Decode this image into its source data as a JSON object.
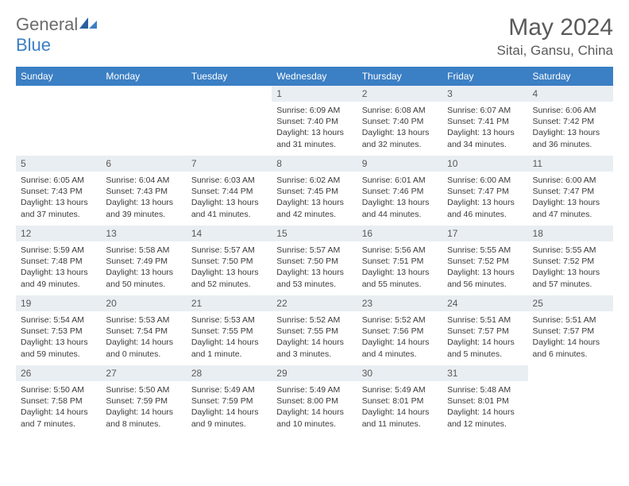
{
  "brand": {
    "text1": "General",
    "text2": "Blue"
  },
  "title": "May 2024",
  "location": "Sitai, Gansu, China",
  "colors": {
    "header_bg": "#3b7fc4",
    "header_text": "#ffffff",
    "daynum_bg": "#e9eef2",
    "body_text": "#3a3a3a",
    "page_bg": "#ffffff"
  },
  "weekdays": [
    "Sunday",
    "Monday",
    "Tuesday",
    "Wednesday",
    "Thursday",
    "Friday",
    "Saturday"
  ],
  "weeks": [
    [
      null,
      null,
      null,
      {
        "n": "1",
        "sr": "Sunrise: 6:09 AM",
        "ss": "Sunset: 7:40 PM",
        "dl": "Daylight: 13 hours and 31 minutes."
      },
      {
        "n": "2",
        "sr": "Sunrise: 6:08 AM",
        "ss": "Sunset: 7:40 PM",
        "dl": "Daylight: 13 hours and 32 minutes."
      },
      {
        "n": "3",
        "sr": "Sunrise: 6:07 AM",
        "ss": "Sunset: 7:41 PM",
        "dl": "Daylight: 13 hours and 34 minutes."
      },
      {
        "n": "4",
        "sr": "Sunrise: 6:06 AM",
        "ss": "Sunset: 7:42 PM",
        "dl": "Daylight: 13 hours and 36 minutes."
      }
    ],
    [
      {
        "n": "5",
        "sr": "Sunrise: 6:05 AM",
        "ss": "Sunset: 7:43 PM",
        "dl": "Daylight: 13 hours and 37 minutes."
      },
      {
        "n": "6",
        "sr": "Sunrise: 6:04 AM",
        "ss": "Sunset: 7:43 PM",
        "dl": "Daylight: 13 hours and 39 minutes."
      },
      {
        "n": "7",
        "sr": "Sunrise: 6:03 AM",
        "ss": "Sunset: 7:44 PM",
        "dl": "Daylight: 13 hours and 41 minutes."
      },
      {
        "n": "8",
        "sr": "Sunrise: 6:02 AM",
        "ss": "Sunset: 7:45 PM",
        "dl": "Daylight: 13 hours and 42 minutes."
      },
      {
        "n": "9",
        "sr": "Sunrise: 6:01 AM",
        "ss": "Sunset: 7:46 PM",
        "dl": "Daylight: 13 hours and 44 minutes."
      },
      {
        "n": "10",
        "sr": "Sunrise: 6:00 AM",
        "ss": "Sunset: 7:47 PM",
        "dl": "Daylight: 13 hours and 46 minutes."
      },
      {
        "n": "11",
        "sr": "Sunrise: 6:00 AM",
        "ss": "Sunset: 7:47 PM",
        "dl": "Daylight: 13 hours and 47 minutes."
      }
    ],
    [
      {
        "n": "12",
        "sr": "Sunrise: 5:59 AM",
        "ss": "Sunset: 7:48 PM",
        "dl": "Daylight: 13 hours and 49 minutes."
      },
      {
        "n": "13",
        "sr": "Sunrise: 5:58 AM",
        "ss": "Sunset: 7:49 PM",
        "dl": "Daylight: 13 hours and 50 minutes."
      },
      {
        "n": "14",
        "sr": "Sunrise: 5:57 AM",
        "ss": "Sunset: 7:50 PM",
        "dl": "Daylight: 13 hours and 52 minutes."
      },
      {
        "n": "15",
        "sr": "Sunrise: 5:57 AM",
        "ss": "Sunset: 7:50 PM",
        "dl": "Daylight: 13 hours and 53 minutes."
      },
      {
        "n": "16",
        "sr": "Sunrise: 5:56 AM",
        "ss": "Sunset: 7:51 PM",
        "dl": "Daylight: 13 hours and 55 minutes."
      },
      {
        "n": "17",
        "sr": "Sunrise: 5:55 AM",
        "ss": "Sunset: 7:52 PM",
        "dl": "Daylight: 13 hours and 56 minutes."
      },
      {
        "n": "18",
        "sr": "Sunrise: 5:55 AM",
        "ss": "Sunset: 7:52 PM",
        "dl": "Daylight: 13 hours and 57 minutes."
      }
    ],
    [
      {
        "n": "19",
        "sr": "Sunrise: 5:54 AM",
        "ss": "Sunset: 7:53 PM",
        "dl": "Daylight: 13 hours and 59 minutes."
      },
      {
        "n": "20",
        "sr": "Sunrise: 5:53 AM",
        "ss": "Sunset: 7:54 PM",
        "dl": "Daylight: 14 hours and 0 minutes."
      },
      {
        "n": "21",
        "sr": "Sunrise: 5:53 AM",
        "ss": "Sunset: 7:55 PM",
        "dl": "Daylight: 14 hours and 1 minute."
      },
      {
        "n": "22",
        "sr": "Sunrise: 5:52 AM",
        "ss": "Sunset: 7:55 PM",
        "dl": "Daylight: 14 hours and 3 minutes."
      },
      {
        "n": "23",
        "sr": "Sunrise: 5:52 AM",
        "ss": "Sunset: 7:56 PM",
        "dl": "Daylight: 14 hours and 4 minutes."
      },
      {
        "n": "24",
        "sr": "Sunrise: 5:51 AM",
        "ss": "Sunset: 7:57 PM",
        "dl": "Daylight: 14 hours and 5 minutes."
      },
      {
        "n": "25",
        "sr": "Sunrise: 5:51 AM",
        "ss": "Sunset: 7:57 PM",
        "dl": "Daylight: 14 hours and 6 minutes."
      }
    ],
    [
      {
        "n": "26",
        "sr": "Sunrise: 5:50 AM",
        "ss": "Sunset: 7:58 PM",
        "dl": "Daylight: 14 hours and 7 minutes."
      },
      {
        "n": "27",
        "sr": "Sunrise: 5:50 AM",
        "ss": "Sunset: 7:59 PM",
        "dl": "Daylight: 14 hours and 8 minutes."
      },
      {
        "n": "28",
        "sr": "Sunrise: 5:49 AM",
        "ss": "Sunset: 7:59 PM",
        "dl": "Daylight: 14 hours and 9 minutes."
      },
      {
        "n": "29",
        "sr": "Sunrise: 5:49 AM",
        "ss": "Sunset: 8:00 PM",
        "dl": "Daylight: 14 hours and 10 minutes."
      },
      {
        "n": "30",
        "sr": "Sunrise: 5:49 AM",
        "ss": "Sunset: 8:01 PM",
        "dl": "Daylight: 14 hours and 11 minutes."
      },
      {
        "n": "31",
        "sr": "Sunrise: 5:48 AM",
        "ss": "Sunset: 8:01 PM",
        "dl": "Daylight: 14 hours and 12 minutes."
      },
      null
    ]
  ]
}
